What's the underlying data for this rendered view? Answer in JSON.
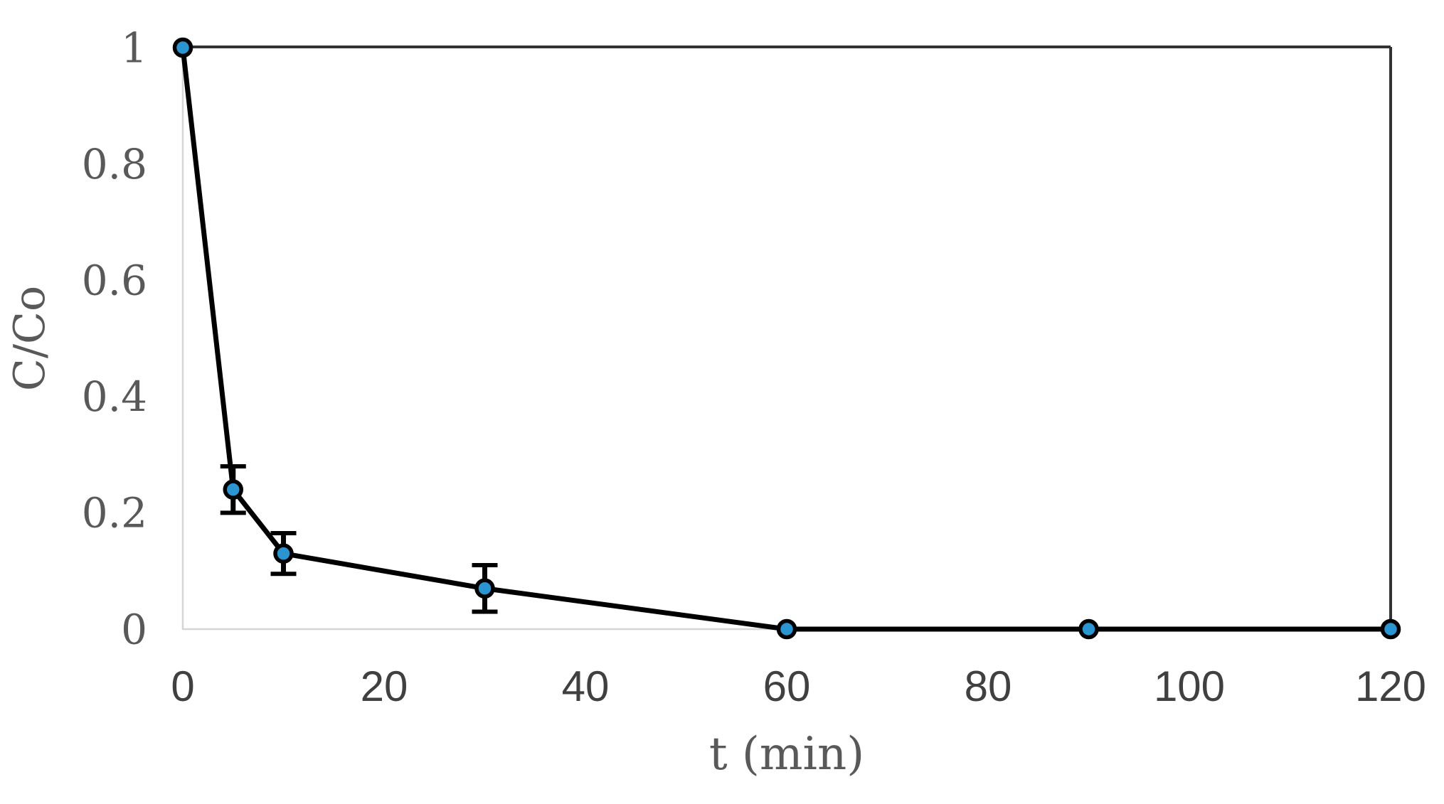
{
  "figure": {
    "background": "#ffffff"
  },
  "chart_data": {
    "type": "line",
    "title": "",
    "xlabel": "t (min)",
    "ylabel": "C/Co",
    "x": [
      0,
      5,
      10,
      30,
      60,
      90,
      120
    ],
    "series": [
      {
        "name": "C/Co",
        "values": [
          1.0,
          0.24,
          0.13,
          0.07,
          0.0,
          0.0,
          0.0
        ],
        "errors": [
          0,
          0.04,
          0.035,
          0.04,
          0,
          0,
          0
        ]
      }
    ],
    "xlim": [
      0,
      120
    ],
    "ylim": [
      0,
      1
    ],
    "xticks": [
      0,
      20,
      40,
      60,
      80,
      100,
      120
    ],
    "xtick_labels": [
      "0",
      "20",
      "40",
      "60",
      "80",
      "100",
      "120"
    ],
    "yticks": [
      1,
      0.8,
      0.6,
      0.4,
      0.2,
      0
    ],
    "ytick_labels": [
      "1",
      "0.8",
      "0.6",
      "0.4",
      "0.2",
      "0"
    ],
    "grid": false,
    "legend": null,
    "marker_shape": "circle",
    "colors": {
      "marker_fill": "#2B95D2",
      "marker_stroke": "#000000",
      "line": "#000000",
      "error_bar": "#000000",
      "plot_border": "#333333",
      "axis_line": "#d6d6d6",
      "ytick_text": "#595959",
      "xtick_text": "#404040",
      "axis_title_text": "#595959"
    }
  }
}
